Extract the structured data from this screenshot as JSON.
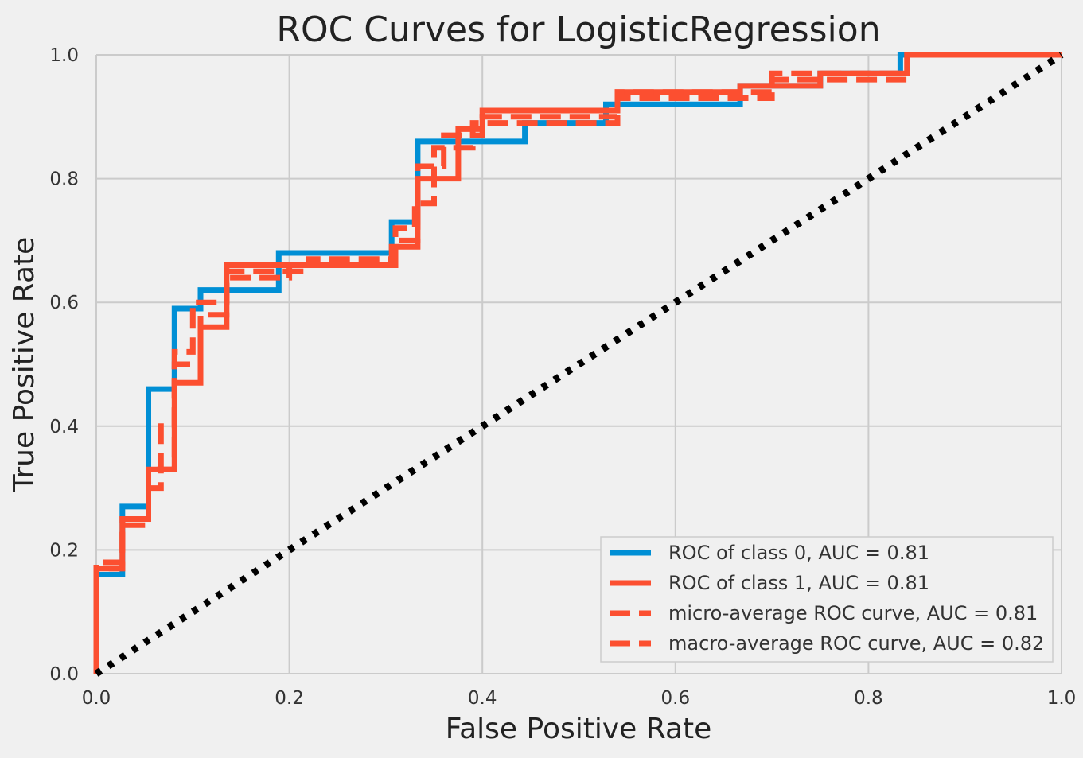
{
  "chart_data": {
    "type": "line",
    "title": "ROC Curves for LogisticRegression",
    "xlabel": "False Positive Rate",
    "ylabel": "True Positive Rate",
    "xlim": [
      0.0,
      1.0
    ],
    "ylim": [
      0.0,
      1.0
    ],
    "xticks": [
      "0.0",
      "0.2",
      "0.4",
      "0.6",
      "0.8",
      "1.0"
    ],
    "yticks": [
      "0.0",
      "0.2",
      "0.4",
      "0.6",
      "0.8",
      "1.0"
    ],
    "grid": true,
    "legend_position": "lower-right",
    "series": [
      {
        "name": "ROC of class 0, AUC = 0.81",
        "color": "#008fd5",
        "style": "solid",
        "x": [
          0.0,
          0.0,
          0.027,
          0.027,
          0.054,
          0.054,
          0.081,
          0.081,
          0.108,
          0.108,
          0.135,
          0.135,
          0.189,
          0.189,
          0.306,
          0.306,
          0.333,
          0.333,
          0.444,
          0.444,
          0.528,
          0.528,
          0.667,
          0.667,
          0.75,
          0.75,
          0.833,
          0.833,
          1.0
        ],
        "y": [
          0.0,
          0.16,
          0.16,
          0.27,
          0.27,
          0.46,
          0.46,
          0.59,
          0.59,
          0.62,
          0.62,
          0.62,
          0.62,
          0.68,
          0.68,
          0.73,
          0.73,
          0.86,
          0.86,
          0.89,
          0.89,
          0.92,
          0.92,
          0.95,
          0.95,
          0.97,
          0.97,
          1.0,
          1.0
        ]
      },
      {
        "name": "ROC of class 1, AUC = 0.81",
        "color": "#fc4f30",
        "style": "solid",
        "x": [
          0.0,
          0.0,
          0.027,
          0.027,
          0.054,
          0.054,
          0.081,
          0.081,
          0.108,
          0.108,
          0.135,
          0.135,
          0.306,
          0.306,
          0.333,
          0.333,
          0.375,
          0.375,
          0.4,
          0.4,
          0.54,
          0.54,
          0.667,
          0.667,
          0.75,
          0.75,
          0.84,
          0.84,
          1.0
        ],
        "y": [
          0.0,
          0.17,
          0.17,
          0.25,
          0.25,
          0.33,
          0.33,
          0.47,
          0.47,
          0.56,
          0.56,
          0.66,
          0.66,
          0.69,
          0.69,
          0.8,
          0.8,
          0.88,
          0.88,
          0.91,
          0.91,
          0.94,
          0.94,
          0.95,
          0.95,
          0.97,
          0.97,
          1.0,
          1.0
        ]
      },
      {
        "name": "micro-average ROC curve, AUC = 0.81",
        "color": "#fc4f30",
        "style": "dashed",
        "x": [
          0.0,
          0.0,
          0.027,
          0.027,
          0.054,
          0.054,
          0.067,
          0.067,
          0.081,
          0.081,
          0.108,
          0.108,
          0.135,
          0.135,
          0.2,
          0.2,
          0.31,
          0.31,
          0.33,
          0.33,
          0.35,
          0.35,
          0.39,
          0.39,
          0.54,
          0.54,
          0.7,
          0.7,
          0.84,
          0.84,
          1.0
        ],
        "y": [
          0.0,
          0.17,
          0.17,
          0.24,
          0.24,
          0.3,
          0.3,
          0.4,
          0.4,
          0.5,
          0.5,
          0.58,
          0.58,
          0.64,
          0.64,
          0.66,
          0.66,
          0.72,
          0.72,
          0.76,
          0.76,
          0.85,
          0.85,
          0.89,
          0.89,
          0.93,
          0.93,
          0.96,
          0.96,
          1.0,
          1.0
        ]
      },
      {
        "name": "macro-average ROC curve, AUC = 0.82",
        "color": "#fc4f30",
        "style": "dashed",
        "x": [
          0.0,
          0.0,
          0.027,
          0.027,
          0.054,
          0.054,
          0.081,
          0.081,
          0.1,
          0.1,
          0.135,
          0.135,
          0.22,
          0.22,
          0.31,
          0.31,
          0.333,
          0.333,
          0.36,
          0.36,
          0.4,
          0.4,
          0.54,
          0.54,
          0.7,
          0.7,
          0.84,
          0.84,
          1.0
        ],
        "y": [
          0.0,
          0.18,
          0.18,
          0.25,
          0.25,
          0.33,
          0.33,
          0.52,
          0.52,
          0.6,
          0.6,
          0.65,
          0.65,
          0.67,
          0.67,
          0.7,
          0.7,
          0.82,
          0.82,
          0.87,
          0.87,
          0.9,
          0.9,
          0.94,
          0.94,
          0.97,
          0.97,
          1.0,
          1.0
        ]
      },
      {
        "name": "",
        "color": "#000000",
        "style": "dotted",
        "x": [
          0.0,
          1.0
        ],
        "y": [
          0.0,
          1.0
        ]
      }
    ]
  }
}
